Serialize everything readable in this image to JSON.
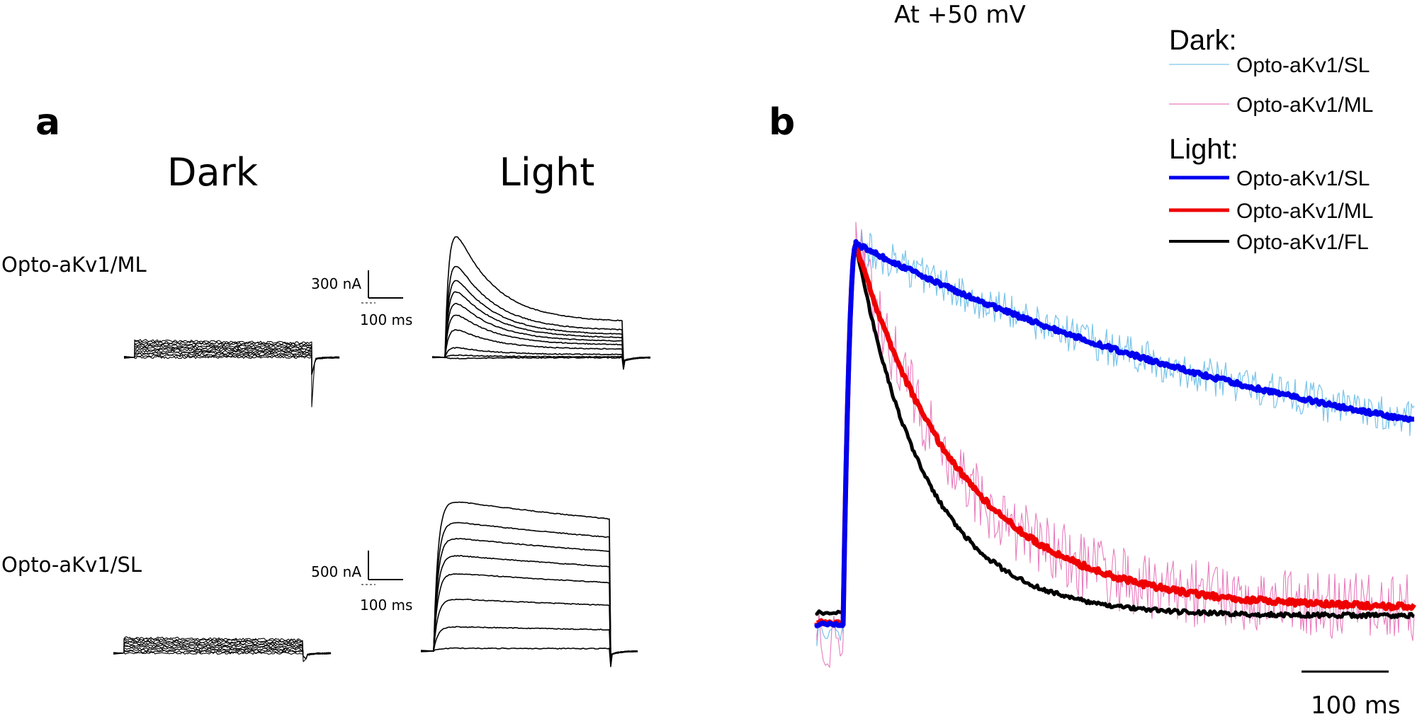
{
  "panel_a": {
    "label": "a",
    "col_titles": [
      "Dark",
      "Light"
    ],
    "row_labels": [
      "Opto-aKv1/ML",
      "Opto-aKv1/SL"
    ],
    "scalebars": [
      {
        "current": "300 nA",
        "time": "100 ms"
      },
      {
        "current": "500 nA",
        "time": "100 ms"
      }
    ]
  },
  "panel_b": {
    "label": "b",
    "title": "At +50 mV",
    "legend": {
      "dark_header": "Dark:",
      "light_header": "Light:",
      "items": [
        {
          "group": "dark",
          "name": "Opto-aKv1/SL",
          "color": "#7fc6ea"
        },
        {
          "group": "dark",
          "name": "Opto-aKv1/ML",
          "color": "#e87bbd"
        },
        {
          "group": "light",
          "name": "Opto-aKv1/SL",
          "color": "#0000ee"
        },
        {
          "group": "light",
          "name": "Opto-aKv1/ML",
          "color": "#ee0000"
        },
        {
          "group": "light",
          "name": "Opto-aKv1/FL",
          "color": "#000000"
        }
      ]
    },
    "scalebar": "100 ms"
  },
  "chart_data": [
    {
      "type": "line",
      "panel": "a",
      "rows": [
        "Opto-aKv1/ML",
        "Opto-aKv1/SL"
      ],
      "columns": [
        "Dark",
        "Light"
      ],
      "scalebars": [
        "300 nA",
        "500 nA",
        "100 ms"
      ]
    },
    {
      "type": "line",
      "panel": "b",
      "title": "At +50 mV",
      "series": [
        {
          "name": "Dark: Opto-aKv1/SL",
          "color": "#7fc6ea"
        },
        {
          "name": "Dark: Opto-aKv1/ML",
          "color": "#e87bbd"
        },
        {
          "name": "Light: Opto-aKv1/SL",
          "color": "#0000ee"
        },
        {
          "name": "Light: Opto-aKv1/ML",
          "color": "#ee0000"
        },
        {
          "name": "Light: Opto-aKv1/FL",
          "color": "#000000"
        }
      ],
      "scalebar": "100 ms"
    }
  ]
}
